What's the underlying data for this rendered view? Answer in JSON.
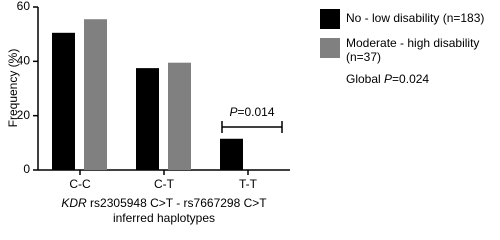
{
  "chart_data": {
    "type": "bar",
    "ylabel": "Frequency (%)",
    "xlabel": {
      "italic": "KDR",
      "line1": " rs2305948 C>T - rs7667298 C>T",
      "line2": "inferred haplotypes"
    },
    "categories": [
      "C-C",
      "C-T",
      "T-T"
    ],
    "series": [
      {
        "name": "No - low disability (n=183)",
        "color": "#000000",
        "values": [
          50.5,
          37.5,
          11.5
        ]
      },
      {
        "name": [
          "Moderate - high disability",
          "(n=37)"
        ],
        "color": "#808080",
        "values": [
          55.5,
          39.5,
          0
        ]
      }
    ],
    "ylim": [
      0,
      60
    ],
    "yticks": [
      0,
      20,
      40,
      60
    ],
    "annotations": [
      {
        "italic": "P",
        "text": "=0.014"
      },
      {
        "prefix": "Global ",
        "italic": "P",
        "text": "=0.024"
      }
    ],
    "legend": "right"
  }
}
